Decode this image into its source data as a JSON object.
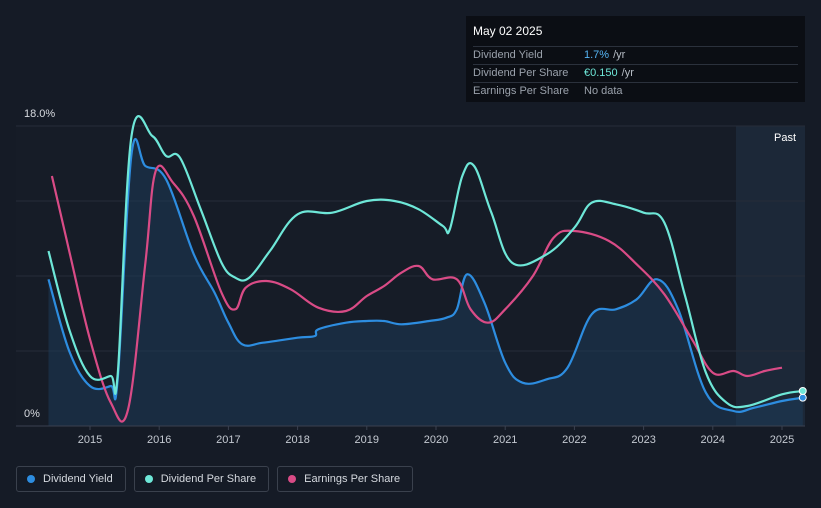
{
  "tooltip": {
    "date": "May 02 2025",
    "rows": [
      {
        "label": "Dividend Yield",
        "value": "1.7%",
        "unit": "/yr"
      },
      {
        "label": "Dividend Per Share",
        "value": "€0.150",
        "unit": "/yr"
      },
      {
        "label": "Earnings Per Share",
        "value": "No data",
        "unit": ""
      }
    ]
  },
  "y_axis": {
    "top_label": "18.0%",
    "bottom_label": "0%"
  },
  "past_label": "Past",
  "legend": [
    {
      "label": "Dividend Yield",
      "color": "#2d8de0"
    },
    {
      "label": "Dividend Per Share",
      "color": "#6ee7d8"
    },
    {
      "label": "Earnings Per Share",
      "color": "#d94b86"
    }
  ],
  "chart_data": {
    "type": "line",
    "x_ticks": [
      "2015",
      "2016",
      "2017",
      "2018",
      "2019",
      "2020",
      "2021",
      "2022",
      "2023",
      "2024",
      "2025"
    ],
    "ylim": [
      0,
      18
    ],
    "y_unit": "%",
    "series": [
      {
        "name": "Dividend Yield",
        "color": "#2d8de0",
        "points": [
          [
            2014.4,
            8.8
          ],
          [
            2014.7,
            4.5
          ],
          [
            2015.0,
            2.4
          ],
          [
            2015.3,
            2.4
          ],
          [
            2015.4,
            2.8
          ],
          [
            2015.6,
            16.3
          ],
          [
            2015.8,
            15.6
          ],
          [
            2016.1,
            14.8
          ],
          [
            2016.5,
            10.3
          ],
          [
            2016.8,
            8.0
          ],
          [
            2017.0,
            6.2
          ],
          [
            2017.2,
            4.9
          ],
          [
            2017.5,
            5.0
          ],
          [
            2018.0,
            5.3
          ],
          [
            2018.25,
            5.4
          ],
          [
            2018.3,
            5.8
          ],
          [
            2018.7,
            6.2
          ],
          [
            2019.0,
            6.3
          ],
          [
            2019.25,
            6.3
          ],
          [
            2019.5,
            6.1
          ],
          [
            2019.9,
            6.3
          ],
          [
            2020.15,
            6.5
          ],
          [
            2020.3,
            7.0
          ],
          [
            2020.45,
            9.1
          ],
          [
            2020.7,
            7.4
          ],
          [
            2021.0,
            3.8
          ],
          [
            2021.25,
            2.6
          ],
          [
            2021.6,
            2.8
          ],
          [
            2021.9,
            3.5
          ],
          [
            2022.25,
            6.7
          ],
          [
            2022.6,
            7.0
          ],
          [
            2022.9,
            7.6
          ],
          [
            2023.2,
            8.8
          ],
          [
            2023.5,
            7.0
          ],
          [
            2023.9,
            2.0
          ],
          [
            2024.3,
            0.9
          ],
          [
            2024.6,
            1.1
          ],
          [
            2025.0,
            1.5
          ],
          [
            2025.3,
            1.7
          ]
        ]
      },
      {
        "name": "Dividend Per Share",
        "color": "#6ee7d8",
        "points": [
          [
            2014.4,
            10.5
          ],
          [
            2014.7,
            5.8
          ],
          [
            2015.0,
            3.0
          ],
          [
            2015.3,
            3.0
          ],
          [
            2015.4,
            3.1
          ],
          [
            2015.6,
            17.4
          ],
          [
            2015.9,
            17.4
          ],
          [
            2016.1,
            16.2
          ],
          [
            2016.3,
            16.1
          ],
          [
            2016.6,
            13.0
          ],
          [
            2016.9,
            9.8
          ],
          [
            2017.1,
            8.9
          ],
          [
            2017.3,
            8.9
          ],
          [
            2017.6,
            10.5
          ],
          [
            2018.0,
            12.7
          ],
          [
            2018.5,
            12.8
          ],
          [
            2019.0,
            13.5
          ],
          [
            2019.4,
            13.5
          ],
          [
            2019.75,
            13.0
          ],
          [
            2020.1,
            12.0
          ],
          [
            2020.2,
            11.8
          ],
          [
            2020.38,
            15.0
          ],
          [
            2020.55,
            15.6
          ],
          [
            2020.8,
            12.8
          ],
          [
            2021.1,
            9.8
          ],
          [
            2021.6,
            10.3
          ],
          [
            2022.0,
            11.9
          ],
          [
            2022.25,
            13.4
          ],
          [
            2022.6,
            13.3
          ],
          [
            2023.0,
            12.8
          ],
          [
            2023.3,
            12.2
          ],
          [
            2023.6,
            7.8
          ],
          [
            2023.9,
            3.2
          ],
          [
            2024.2,
            1.4
          ],
          [
            2024.5,
            1.2
          ],
          [
            2025.0,
            1.9
          ],
          [
            2025.3,
            2.1
          ]
        ]
      },
      {
        "name": "Earnings Per Share",
        "color": "#d94b86",
        "points": [
          [
            2014.45,
            15.0
          ],
          [
            2014.7,
            10.5
          ],
          [
            2015.0,
            5.2
          ],
          [
            2015.3,
            1.4
          ],
          [
            2015.55,
            1.0
          ],
          [
            2015.8,
            9.8
          ],
          [
            2015.95,
            15.3
          ],
          [
            2016.2,
            14.6
          ],
          [
            2016.5,
            12.6
          ],
          [
            2016.9,
            8.0
          ],
          [
            2017.1,
            7.0
          ],
          [
            2017.25,
            8.3
          ],
          [
            2017.55,
            8.7
          ],
          [
            2017.9,
            8.2
          ],
          [
            2018.3,
            7.1
          ],
          [
            2018.7,
            6.9
          ],
          [
            2019.0,
            7.8
          ],
          [
            2019.25,
            8.4
          ],
          [
            2019.5,
            9.2
          ],
          [
            2019.75,
            9.6
          ],
          [
            2019.95,
            8.8
          ],
          [
            2020.3,
            8.8
          ],
          [
            2020.5,
            7.0
          ],
          [
            2020.75,
            6.2
          ],
          [
            2021.0,
            7.0
          ],
          [
            2021.4,
            9.0
          ],
          [
            2021.7,
            11.3
          ],
          [
            2022.0,
            11.7
          ],
          [
            2022.5,
            11.1
          ],
          [
            2022.9,
            9.7
          ],
          [
            2023.3,
            7.9
          ],
          [
            2023.7,
            5.2
          ],
          [
            2024.0,
            3.2
          ],
          [
            2024.3,
            3.3
          ],
          [
            2024.5,
            3.0
          ],
          [
            2024.75,
            3.3
          ],
          [
            2025.0,
            3.5
          ]
        ]
      }
    ]
  }
}
